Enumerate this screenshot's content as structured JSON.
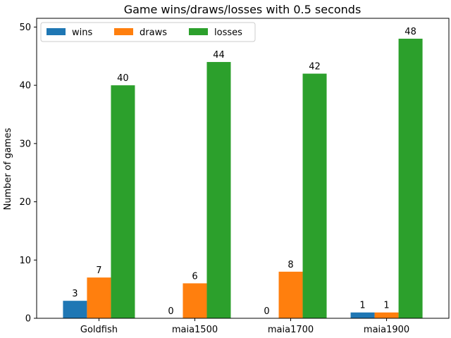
{
  "chart_data": {
    "type": "bar",
    "title": "Game wins/draws/losses with 0.5 seconds",
    "xlabel": "",
    "ylabel": "Number of games",
    "categories": [
      "Goldfish",
      "maia1500",
      "maia1700",
      "maia1900"
    ],
    "series": [
      {
        "name": "wins",
        "values": [
          3,
          0,
          0,
          1
        ],
        "color": "#1f77b4"
      },
      {
        "name": "draws",
        "values": [
          7,
          6,
          8,
          1
        ],
        "color": "#ff7f0e"
      },
      {
        "name": "losses",
        "values": [
          40,
          44,
          42,
          48
        ],
        "color": "#2ca02c"
      }
    ],
    "ylim": [
      0,
      51.5
    ],
    "yticks": [
      0,
      10,
      20,
      30,
      40,
      50
    ],
    "legend": "top-left",
    "grid": false
  }
}
